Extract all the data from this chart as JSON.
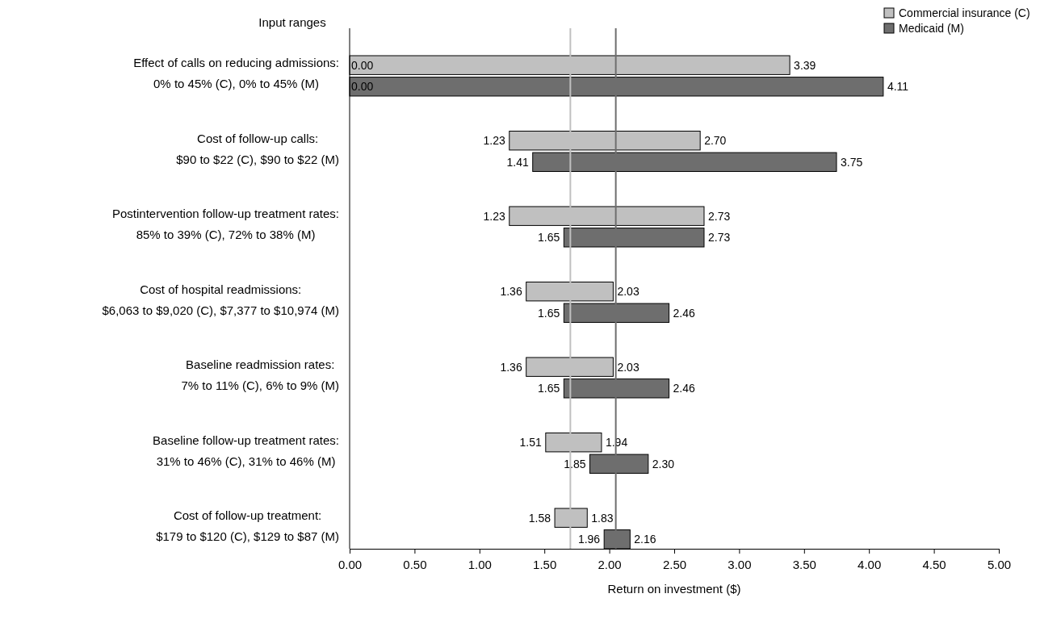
{
  "chart_data": {
    "type": "bar",
    "orientation": "horizontal",
    "ylabel": "Input ranges",
    "xlabel": "Return on investment ($)",
    "categories": [
      "Effect of calls on reducing admissions:\n0% to 45% (C), 0% to 45% (M)",
      "Cost of follow-up calls:\n$90 to $22 (C), $90 to $22 (M)",
      "Postintervention follow-up treatment rates:\n85% to 39% (C), 72% to 38% (M)",
      "Cost of hospital readmissions:\n$6,063 to $9,020 (C), $7,377 to $10,974 (M)",
      "Baseline readmission rates:\n7% to 11% (C), 6% to 9% (M)",
      "Baseline follow-up treatment rates:\n31% to 46% (C), 31% to 46% (M)",
      "Cost of follow-up treatment:\n$179 to $120 (C), $129 to $87 (M)"
    ],
    "series": [
      {
        "name": "Commercial insurance (C)",
        "color": "#c0c0c0",
        "base": [
          0,
          1.23,
          1.23,
          1.36,
          1.36,
          1.51,
          1.58
        ],
        "values": [
          3.39,
          1.47,
          1.5,
          0.67,
          0.67,
          0.43,
          0.25
        ],
        "value_labels": [
          [
            "0.00",
            "3.39"
          ],
          [
            "1.23",
            "2.70"
          ],
          [
            "1.23",
            "2.73"
          ],
          [
            "1.36",
            "2.03"
          ],
          [
            "1.36",
            "2.03"
          ],
          [
            "1.51",
            "1.94"
          ],
          [
            "1.58",
            "1.83"
          ]
        ]
      },
      {
        "name": "Medicaid (M)",
        "color": "#6e6e6e",
        "base": [
          0,
          1.41,
          1.65,
          1.65,
          1.65,
          1.85,
          1.96
        ],
        "values": [
          4.11,
          2.34,
          1.08,
          0.81,
          0.81,
          0.45,
          0.2
        ],
        "value_labels": [
          [
            "0.00",
            "4.11"
          ],
          [
            "1.41",
            "3.75"
          ],
          [
            "1.65",
            "2.73"
          ],
          [
            "1.65",
            "2.46"
          ],
          [
            "1.65",
            "2.46"
          ],
          [
            "1.85",
            "2.30"
          ],
          [
            "1.96",
            "2.16"
          ]
        ]
      }
    ],
    "xlim": [
      0,
      5
    ],
    "xticks": [
      {
        "value": 0,
        "label": "0.00"
      },
      {
        "value": 0.5,
        "label": "0.50"
      },
      {
        "value": 1,
        "label": "1.00"
      },
      {
        "value": 1.5,
        "label": "1.50"
      },
      {
        "value": 2,
        "label": "2.00"
      },
      {
        "value": 2.5,
        "label": "2.50"
      },
      {
        "value": 3,
        "label": "3.00"
      },
      {
        "value": 3.5,
        "label": "3.50"
      },
      {
        "value": 4,
        "label": "4.00"
      },
      {
        "value": 4.5,
        "label": "4.50"
      },
      {
        "value": 5,
        "label": "5.00"
      }
    ],
    "ref_lines": [
      {
        "axis": "x",
        "value": 1.7,
        "color": "#c0c0c0"
      },
      {
        "axis": "x",
        "value": 2.05,
        "color": "#6e6e6e"
      }
    ],
    "legend": "top right",
    "grid": false
  }
}
